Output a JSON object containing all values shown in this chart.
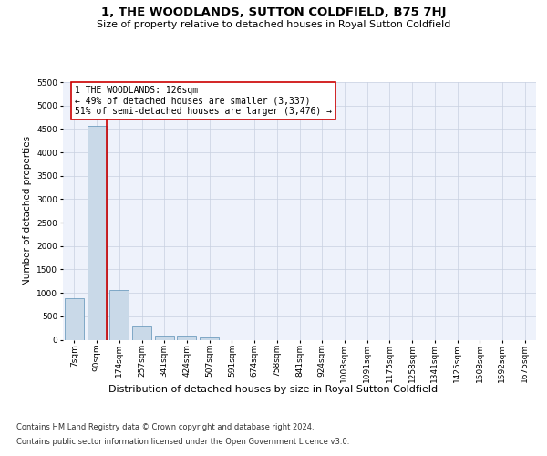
{
  "title": "1, THE WOODLANDS, SUTTON COLDFIELD, B75 7HJ",
  "subtitle": "Size of property relative to detached houses in Royal Sutton Coldfield",
  "xlabel": "Distribution of detached houses by size in Royal Sutton Coldfield",
  "ylabel": "Number of detached properties",
  "footer1": "Contains HM Land Registry data © Crown copyright and database right 2024.",
  "footer2": "Contains public sector information licensed under the Open Government Licence v3.0.",
  "annotation_title": "1 THE WOODLANDS: 126sqm",
  "annotation_line1": "← 49% of detached houses are smaller (3,337)",
  "annotation_line2": "51% of semi-detached houses are larger (3,476) →",
  "bar_color": "#c9d9e8",
  "bar_edge_color": "#5b8fb5",
  "vline_color": "#cc0000",
  "bg_color": "#eef2fb",
  "grid_color": "#c8d0e0",
  "categories": [
    "7sqm",
    "90sqm",
    "174sqm",
    "257sqm",
    "341sqm",
    "424sqm",
    "507sqm",
    "591sqm",
    "674sqm",
    "758sqm",
    "841sqm",
    "924sqm",
    "1008sqm",
    "1091sqm",
    "1175sqm",
    "1258sqm",
    "1341sqm",
    "1425sqm",
    "1508sqm",
    "1592sqm",
    "1675sqm"
  ],
  "values": [
    880,
    4560,
    1060,
    280,
    90,
    80,
    50,
    0,
    0,
    0,
    0,
    0,
    0,
    0,
    0,
    0,
    0,
    0,
    0,
    0,
    0
  ],
  "ylim_max": 5500,
  "yticks": [
    0,
    500,
    1000,
    1500,
    2000,
    2500,
    3000,
    3500,
    4000,
    4500,
    5000,
    5500
  ],
  "vline_pos": 1.43,
  "title_fontsize": 9.5,
  "subtitle_fontsize": 8,
  "ylabel_fontsize": 7.5,
  "xlabel_fontsize": 8,
  "tick_fontsize": 6.5,
  "annot_fontsize": 7,
  "footer_fontsize": 6
}
